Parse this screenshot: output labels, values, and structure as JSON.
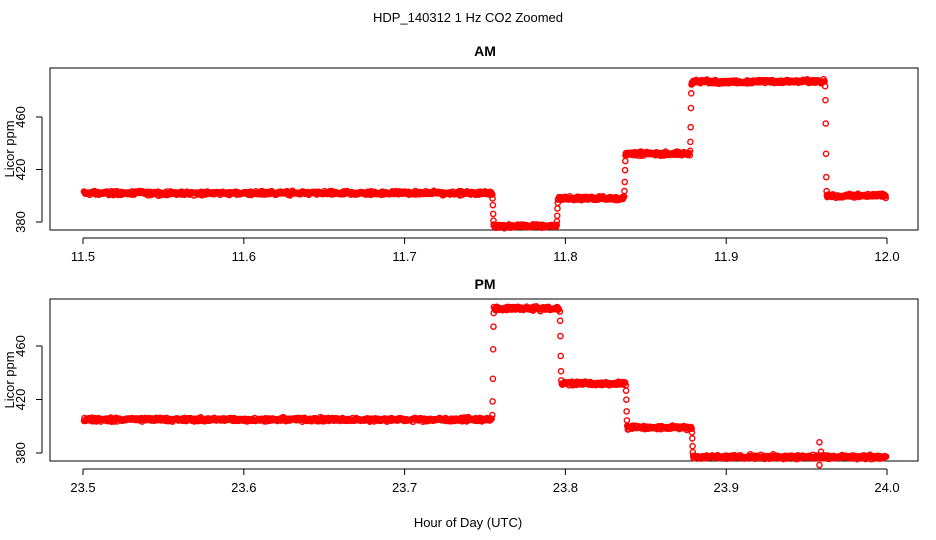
{
  "figure": {
    "title": "HDP_140312  1 Hz CO2 Zoomed",
    "xlabel": "Hour of Day (UTC)",
    "point_color": "#ff0000"
  },
  "chart_data": [
    {
      "type": "scatter",
      "title": "AM",
      "xlabel": "",
      "ylabel": "Licor ppm",
      "xlim": [
        11.5,
        12.0
      ],
      "ylim": [
        374,
        494
      ],
      "xticks": [
        "11.5",
        "11.6",
        "11.7",
        "11.8",
        "11.9",
        "12.0"
      ],
      "xtick_values": [
        11.5,
        11.6,
        11.7,
        11.8,
        11.9,
        12.0
      ],
      "yticks": [
        "380",
        "420",
        "460"
      ],
      "ytick_values": [
        380,
        420,
        460
      ],
      "grid": false,
      "series": [
        {
          "marker": "open-circle",
          "color": "#ff0000",
          "segments": [
            {
              "x_start": 11.5,
              "x_end": 11.755,
              "y": 402
            },
            {
              "x_start": 11.755,
              "x_end": 11.795,
              "y": 377
            },
            {
              "x_start": 11.795,
              "x_end": 11.837,
              "y": 398
            },
            {
              "x_start": 11.837,
              "x_end": 11.878,
              "y": 432
            },
            {
              "x_start": 11.878,
              "x_end": 11.962,
              "y": 487
            },
            {
              "x_start": 11.962,
              "x_end": 12.0,
              "y": 400
            }
          ],
          "transitions": [
            {
              "x": 11.755,
              "y": [
                402,
                377
              ]
            },
            {
              "x": 11.795,
              "y": [
                377,
                398
              ]
            },
            {
              "x": 11.837,
              "y": [
                398,
                432
              ]
            },
            {
              "x": 11.878,
              "y": [
                432,
                487
              ]
            },
            {
              "x": 11.962,
              "y": [
                487,
                400
              ]
            }
          ]
        }
      ]
    },
    {
      "type": "scatter",
      "title": "PM",
      "xlabel": "",
      "ylabel": "Licor ppm",
      "xlim": [
        23.5,
        24.0
      ],
      "ylim": [
        374,
        494
      ],
      "xticks": [
        "23.5",
        "23.6",
        "23.7",
        "23.8",
        "23.9",
        "24.0"
      ],
      "xtick_values": [
        23.5,
        23.6,
        23.7,
        23.8,
        23.9,
        24.0
      ],
      "yticks": [
        "380",
        "420",
        "460"
      ],
      "ytick_values": [
        380,
        420,
        460
      ],
      "grid": false,
      "series": [
        {
          "marker": "open-circle",
          "color": "#ff0000",
          "segments": [
            {
              "x_start": 23.5,
              "x_end": 23.755,
              "y": 405
            },
            {
              "x_start": 23.755,
              "x_end": 23.797,
              "y": 488
            },
            {
              "x_start": 23.797,
              "x_end": 23.838,
              "y": 432
            },
            {
              "x_start": 23.838,
              "x_end": 23.879,
              "y": 399
            },
            {
              "x_start": 23.879,
              "x_end": 24.0,
              "y": 377
            }
          ],
          "transitions": [
            {
              "x": 23.755,
              "y": [
                405,
                488
              ]
            },
            {
              "x": 23.797,
              "y": [
                488,
                432
              ]
            },
            {
              "x": 23.838,
              "y": [
                432,
                399
              ]
            },
            {
              "x": 23.879,
              "y": [
                399,
                377
              ]
            }
          ],
          "outliers": [
            {
              "x": 23.958,
              "y": 388
            },
            {
              "x": 23.958,
              "y": 371
            },
            {
              "x": 23.959,
              "y": 381
            }
          ]
        }
      ]
    }
  ]
}
